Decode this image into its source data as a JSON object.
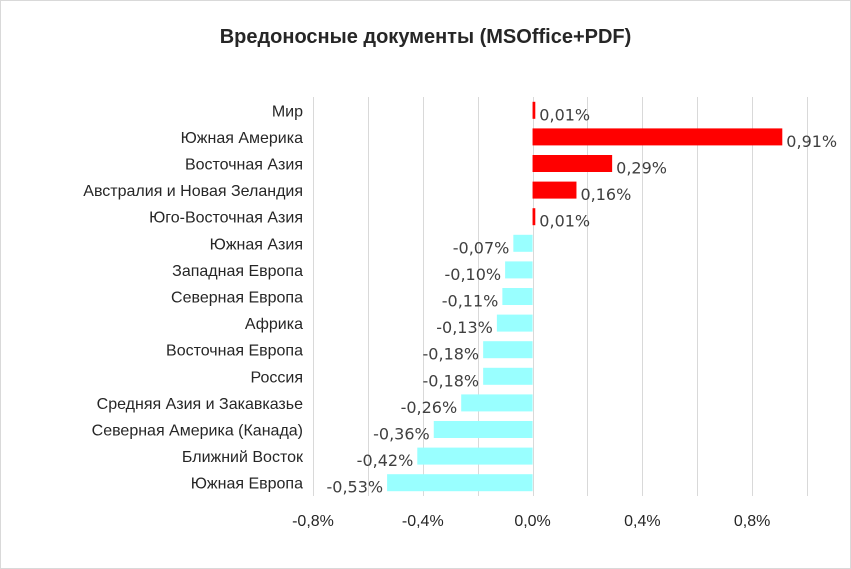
{
  "chart_data": {
    "type": "bar",
    "orientation": "horizontal",
    "title": "Вредоносные документы (MSOffice+PDF)",
    "categories": [
      "Мир",
      "Южная Америка",
      "Восточная Азия",
      "Австралия и Новая Зеландия",
      "Юго-Восточная Азия",
      "Южная Азия",
      "Западная Европа",
      "Северная Европа",
      "Африка",
      "Восточная Европа",
      "Россия",
      "Средняя Азия и Закавказье",
      "Северная Америка (Канада)",
      "Ближний Восток",
      "Южная Европа"
    ],
    "values": [
      0.01,
      0.91,
      0.29,
      0.16,
      0.01,
      -0.07,
      -0.1,
      -0.11,
      -0.13,
      -0.18,
      -0.18,
      -0.26,
      -0.36,
      -0.42,
      -0.53
    ],
    "data_labels": [
      "0,01%",
      "0,91%",
      "0,29%",
      "0,16%",
      "0,01%",
      "-0,07%",
      "-0,10%",
      "-0,11%",
      "-0,13%",
      "-0,18%",
      "-0,18%",
      "-0,26%",
      "-0,36%",
      "-0,42%",
      "-0,53%"
    ],
    "xlim": [
      -0.8,
      1.0
    ],
    "x_ticks": [
      -0.8,
      -0.4,
      0.0,
      0.4,
      0.8
    ],
    "x_tick_labels": [
      "-0,8%",
      "-0,4%",
      "0,0%",
      "0,4%",
      "0,8%"
    ],
    "xlabel": "",
    "ylabel": "",
    "grid": "vertical",
    "legend": "none",
    "colors": {
      "positive": "#ff0000",
      "negative": "#99ffff",
      "grid": "#d9d9d9",
      "text": "#262626",
      "data_label": "#404040"
    }
  }
}
